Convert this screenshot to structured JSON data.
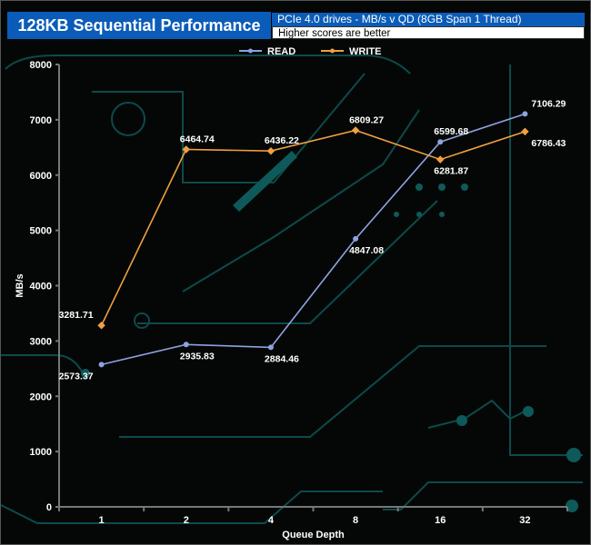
{
  "chart_data": {
    "type": "line",
    "title": "128KB Sequential Performance",
    "subtitle": "PCIe 4.0 drives - MB/s v QD (8GB Span 1 Thread)",
    "note": "Higher scores are better",
    "xlabel": "Queue Depth",
    "ylabel": "MB/s",
    "categories": [
      "1",
      "2",
      "4",
      "8",
      "16",
      "32"
    ],
    "ylim": [
      0,
      8000
    ],
    "yticks": [
      0,
      1000,
      2000,
      3000,
      4000,
      5000,
      6000,
      7000,
      8000
    ],
    "legend_position": "top",
    "grid": false,
    "series": [
      {
        "name": "READ",
        "color": "#8ea2e0",
        "values": [
          2573.37,
          2935.83,
          2884.46,
          4847.08,
          6599.68,
          7106.29
        ]
      },
      {
        "name": "WRITE",
        "color": "#f0a040",
        "values": [
          3281.71,
          6464.74,
          6436.22,
          6809.27,
          6281.87,
          6786.43
        ]
      }
    ]
  }
}
